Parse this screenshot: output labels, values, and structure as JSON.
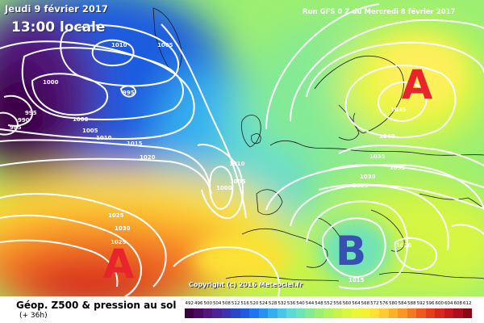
{
  "header": {
    "date": "Jeudi 9 février 2017",
    "time": "13:00 locale",
    "run": "Run GFS 0 Z du Mercredi 8 février 2017"
  },
  "copyright": "Copyright (c) 2016 Meteociel.fr",
  "centers": [
    {
      "label": "A",
      "color": "#e8242c"
    },
    {
      "label": "B",
      "color": "#3a4fb4"
    },
    {
      "label": "A",
      "color": "#e8242c"
    }
  ],
  "isobar_labels": [
    "1010",
    "1005",
    "995",
    "1000",
    "995",
    "990",
    "985",
    "1000",
    "1005",
    "1010",
    "1015",
    "1020",
    "1010",
    "1005",
    "1000",
    "1025",
    "1030",
    "1025",
    "1035",
    "1040",
    "1035",
    "1035",
    "1030",
    "1025",
    "1020",
    "1015"
  ],
  "legend": {
    "title": "Géop. Z500 & pression au sol",
    "subtitle": "(+ 36h)",
    "ticks": [
      "492",
      "496",
      "500",
      "504",
      "508",
      "512",
      "516",
      "520",
      "524",
      "528",
      "532",
      "536",
      "540",
      "544",
      "548",
      "552",
      "556",
      "560",
      "564",
      "568",
      "572",
      "576",
      "580",
      "584",
      "588",
      "592",
      "596",
      "600",
      "604",
      "608",
      "612"
    ],
    "colors": [
      "#3d0045",
      "#4b0a62",
      "#52177d",
      "#4a2597",
      "#3a34b0",
      "#2b46c8",
      "#1f5be0",
      "#1f74f0",
      "#2791f2",
      "#35aef0",
      "#48c6e8",
      "#5cd9d6",
      "#6fe3b8",
      "#84ea95",
      "#9bef72",
      "#b2f25a",
      "#c7f44a",
      "#d9f640",
      "#e9f73a",
      "#f5ef38",
      "#fde136",
      "#fdcb33",
      "#fcb12e",
      "#f99529",
      "#f47824",
      "#ed5a20",
      "#e43e1d",
      "#d8261c",
      "#c7161c",
      "#b00e1c",
      "#8c0616"
    ]
  }
}
